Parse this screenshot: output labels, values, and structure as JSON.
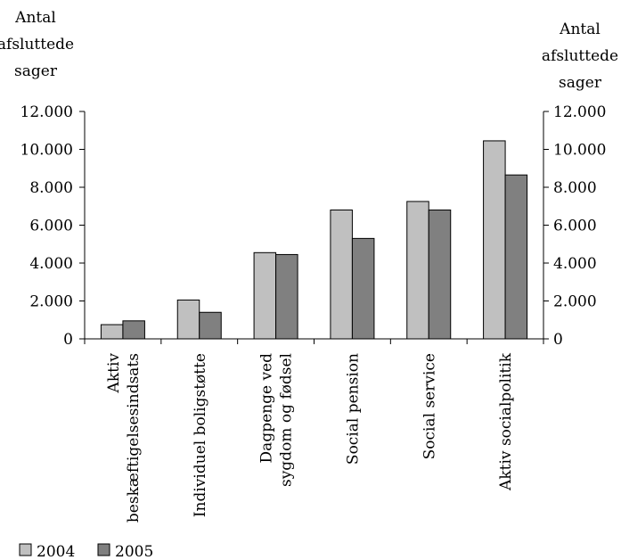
{
  "chart_data": {
    "type": "bar",
    "title": "",
    "ylabel_left": [
      "Antal",
      "afsluttede",
      "sager"
    ],
    "ylabel_right": [
      "Antal",
      "afsluttede",
      "sager"
    ],
    "ylim": [
      0,
      12000
    ],
    "yticks": [
      0,
      2000,
      4000,
      6000,
      8000,
      10000,
      12000
    ],
    "ytick_labels": [
      "0",
      "2.000",
      "4.000",
      "6.000",
      "8.000",
      "10.000",
      "12.000"
    ],
    "categories": [
      [
        "Aktiv",
        "beskæftigelsesindsats"
      ],
      [
        "Individuel boligstøtte"
      ],
      [
        "Dagpenge ved",
        "sygdom og fødsel"
      ],
      [
        "Social pension"
      ],
      [
        "Social service"
      ],
      [
        "Aktiv socialpolitik"
      ]
    ],
    "series": [
      {
        "name": "2004",
        "color": "#c0c0c0",
        "values": [
          750,
          2050,
          4550,
          6800,
          7250,
          10450
        ]
      },
      {
        "name": "2005",
        "color": "#808080",
        "values": [
          950,
          1400,
          4450,
          5300,
          6800,
          8650
        ]
      }
    ],
    "grid": false,
    "legend_position": "bottom-left"
  }
}
